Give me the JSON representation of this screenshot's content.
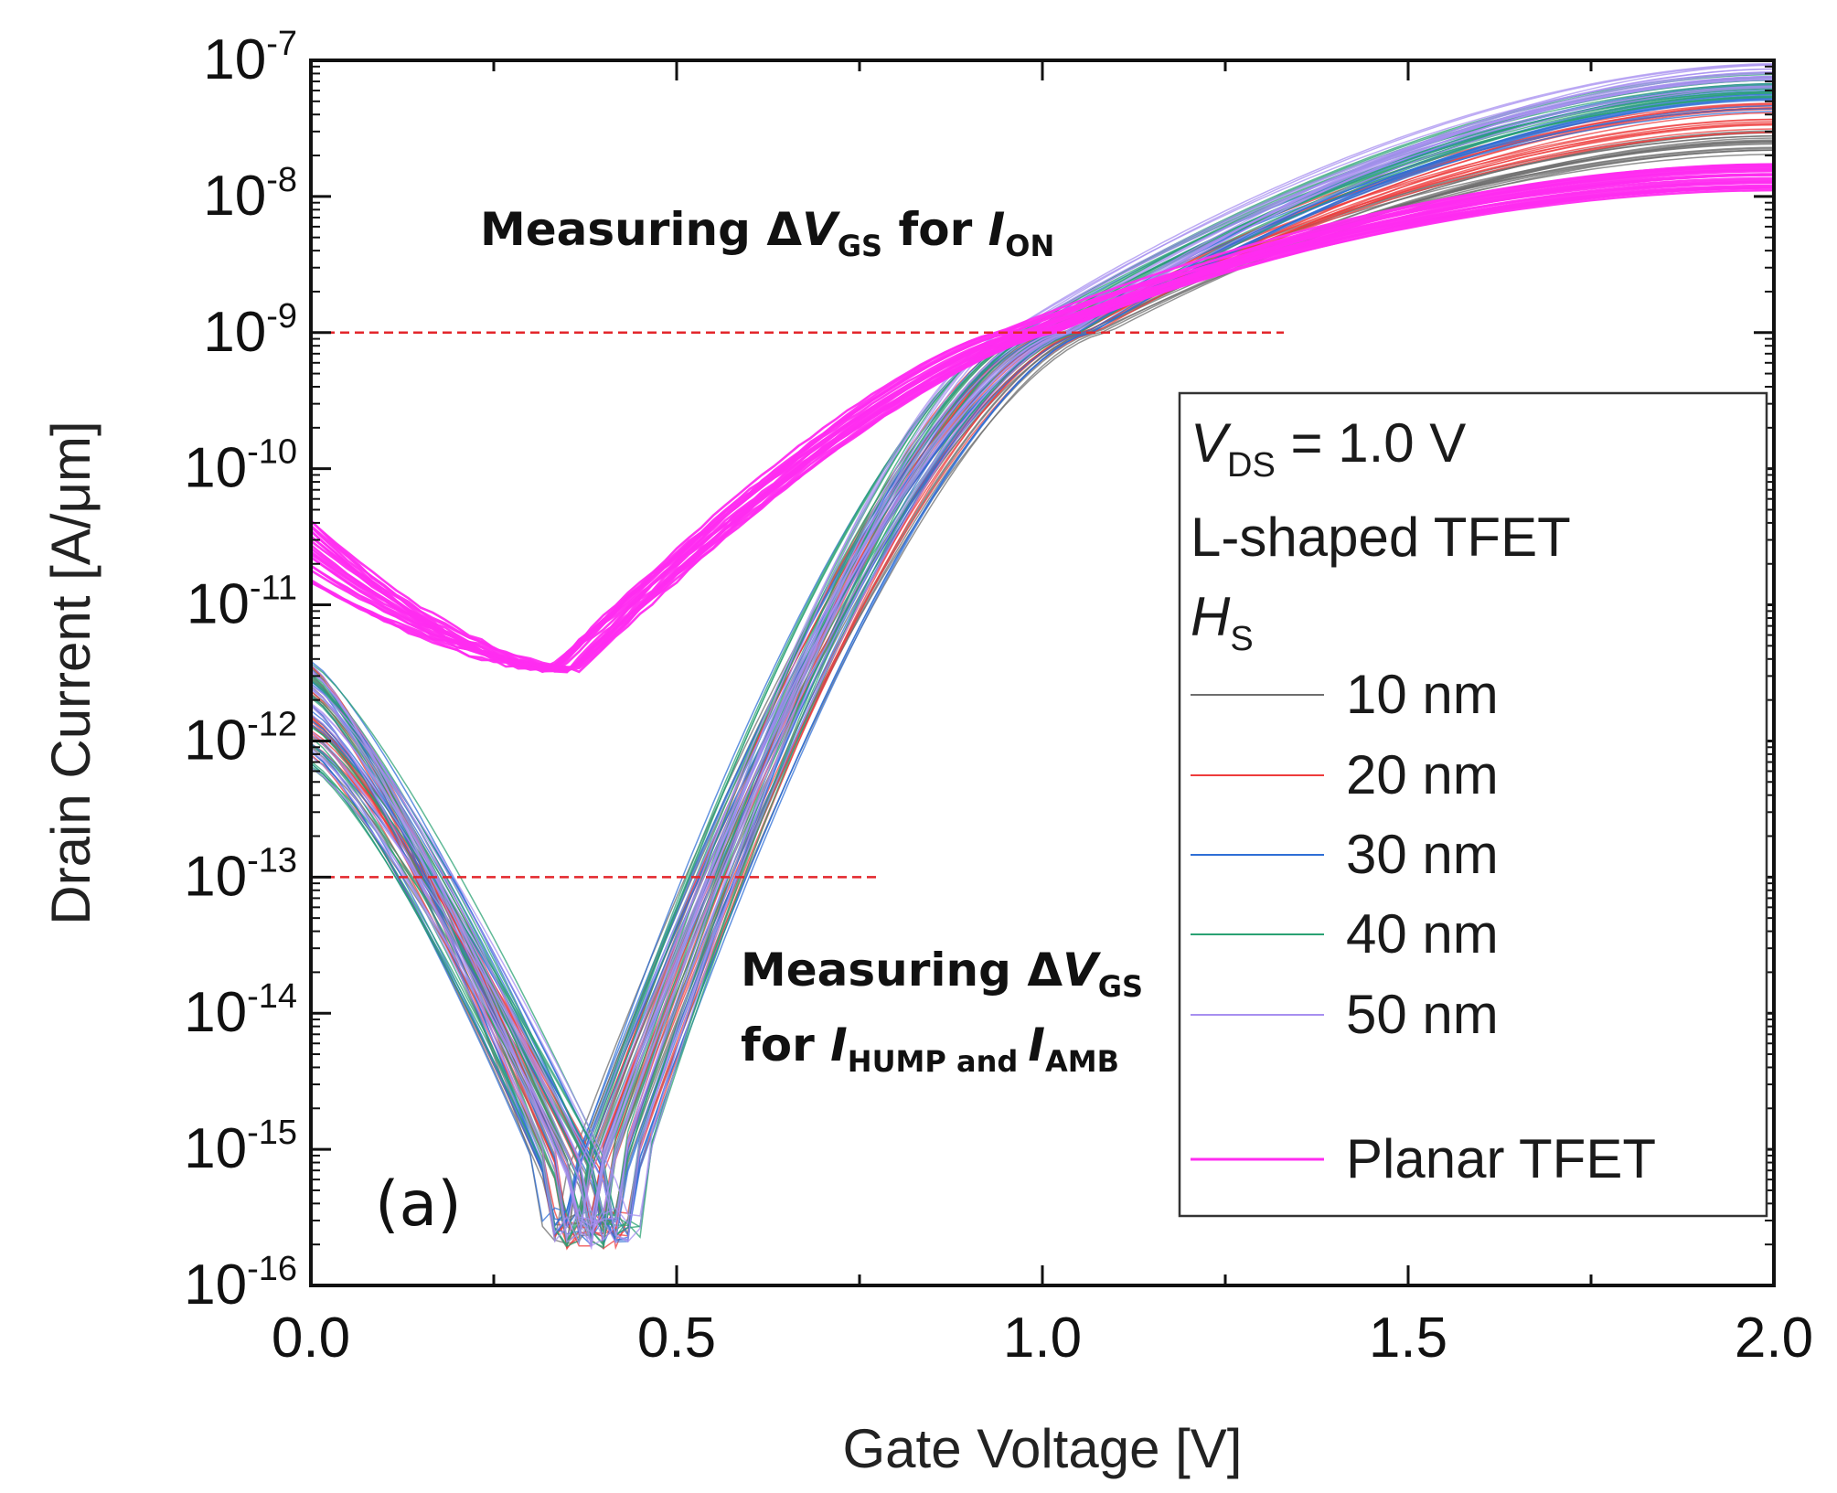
{
  "chart_data": {
    "type": "line",
    "title": "",
    "xlabel": "Gate Voltage [V]",
    "ylabel": "Drain Current [A/μm]",
    "xscale": "linear",
    "yscale": "log",
    "xlim": [
      0.0,
      2.0
    ],
    "ylim_exponents": [
      -16,
      -7
    ],
    "x_ticks": [
      0.0,
      0.5,
      1.0,
      1.5,
      2.0
    ],
    "x_tick_labels": [
      "0.0",
      "0.5",
      "1.0",
      "1.5",
      "2.0"
    ],
    "y_tick_base": "10",
    "y_tick_exponents": [
      "-7",
      "-8",
      "-9",
      "-10",
      "-11",
      "-12",
      "-13",
      "-14",
      "-15",
      "-16"
    ],
    "panel_label": "(a)",
    "annotations": [
      {
        "id": "on",
        "text_prefix": "Measuring Δ",
        "var": "V",
        "var_sub": "GS",
        "mid": " for ",
        "i": "I",
        "i_sub": "ON"
      },
      {
        "id": "hump",
        "line1_prefix": "Measuring Δ",
        "line1_var": "V",
        "line1_var_sub": "GS",
        "line2_prefix": "for ",
        "line2_i1": "I",
        "line2_i1_sub": "HUMP and ",
        "line2_i2": "I",
        "line2_i2_sub": "AMB"
      }
    ],
    "reference_lines": [
      {
        "y_exponent": -9,
        "x_range": [
          0.0,
          1.33
        ],
        "color": "#e3262b",
        "style": "dashed"
      },
      {
        "y_exponent": -13,
        "x_range": [
          0.0,
          0.78
        ],
        "color": "#e3262b",
        "style": "dashed"
      }
    ],
    "legend": {
      "location": "lower-right",
      "vds_var": "V",
      "vds_sub": "DS",
      "vds_value": " = 1.0 V",
      "device": "L-shaped TFET",
      "hs_var": "H",
      "hs_sub": "S",
      "entries": [
        {
          "label": "10 nm",
          "color": "#6e6e6e"
        },
        {
          "label": "20 nm",
          "color": "#ee3c3c"
        },
        {
          "label": "30 nm",
          "color": "#2f6fd6"
        },
        {
          "label": "40 nm",
          "color": "#2aa273"
        },
        {
          "label": "50 nm",
          "color": "#a78ff0"
        },
        {
          "label": "Planar TFET",
          "color": "#ff2cf0"
        }
      ]
    },
    "series": [
      {
        "name": "10 nm",
        "color": "#6e6e6e",
        "min_x": 0.37,
        "floor_exp": -15.28,
        "end_exp": -7.6,
        "threshold_x": 1.04
      },
      {
        "name": "20 nm",
        "color": "#ee3c3c",
        "min_x": 0.38,
        "floor_exp": -15.28,
        "end_exp": -7.42,
        "threshold_x": 1.03
      },
      {
        "name": "30 nm",
        "color": "#2f6fd6",
        "min_x": 0.38,
        "floor_exp": -15.28,
        "end_exp": -7.28,
        "threshold_x": 1.02
      },
      {
        "name": "40 nm",
        "color": "#2aa273",
        "min_x": 0.39,
        "floor_exp": -15.28,
        "end_exp": -7.18,
        "threshold_x": 1.01
      },
      {
        "name": "50 nm",
        "color": "#a78ff0",
        "min_x": 0.39,
        "floor_exp": -15.28,
        "end_exp": -7.1,
        "threshold_x": 1.0
      },
      {
        "name": "Planar TFET",
        "color": "#ff2cf0",
        "min_x": 0.35,
        "min_exp": -11.48,
        "start_exp": -10.6,
        "end_exp": -7.85,
        "threshold_x": 0.98
      }
    ]
  }
}
